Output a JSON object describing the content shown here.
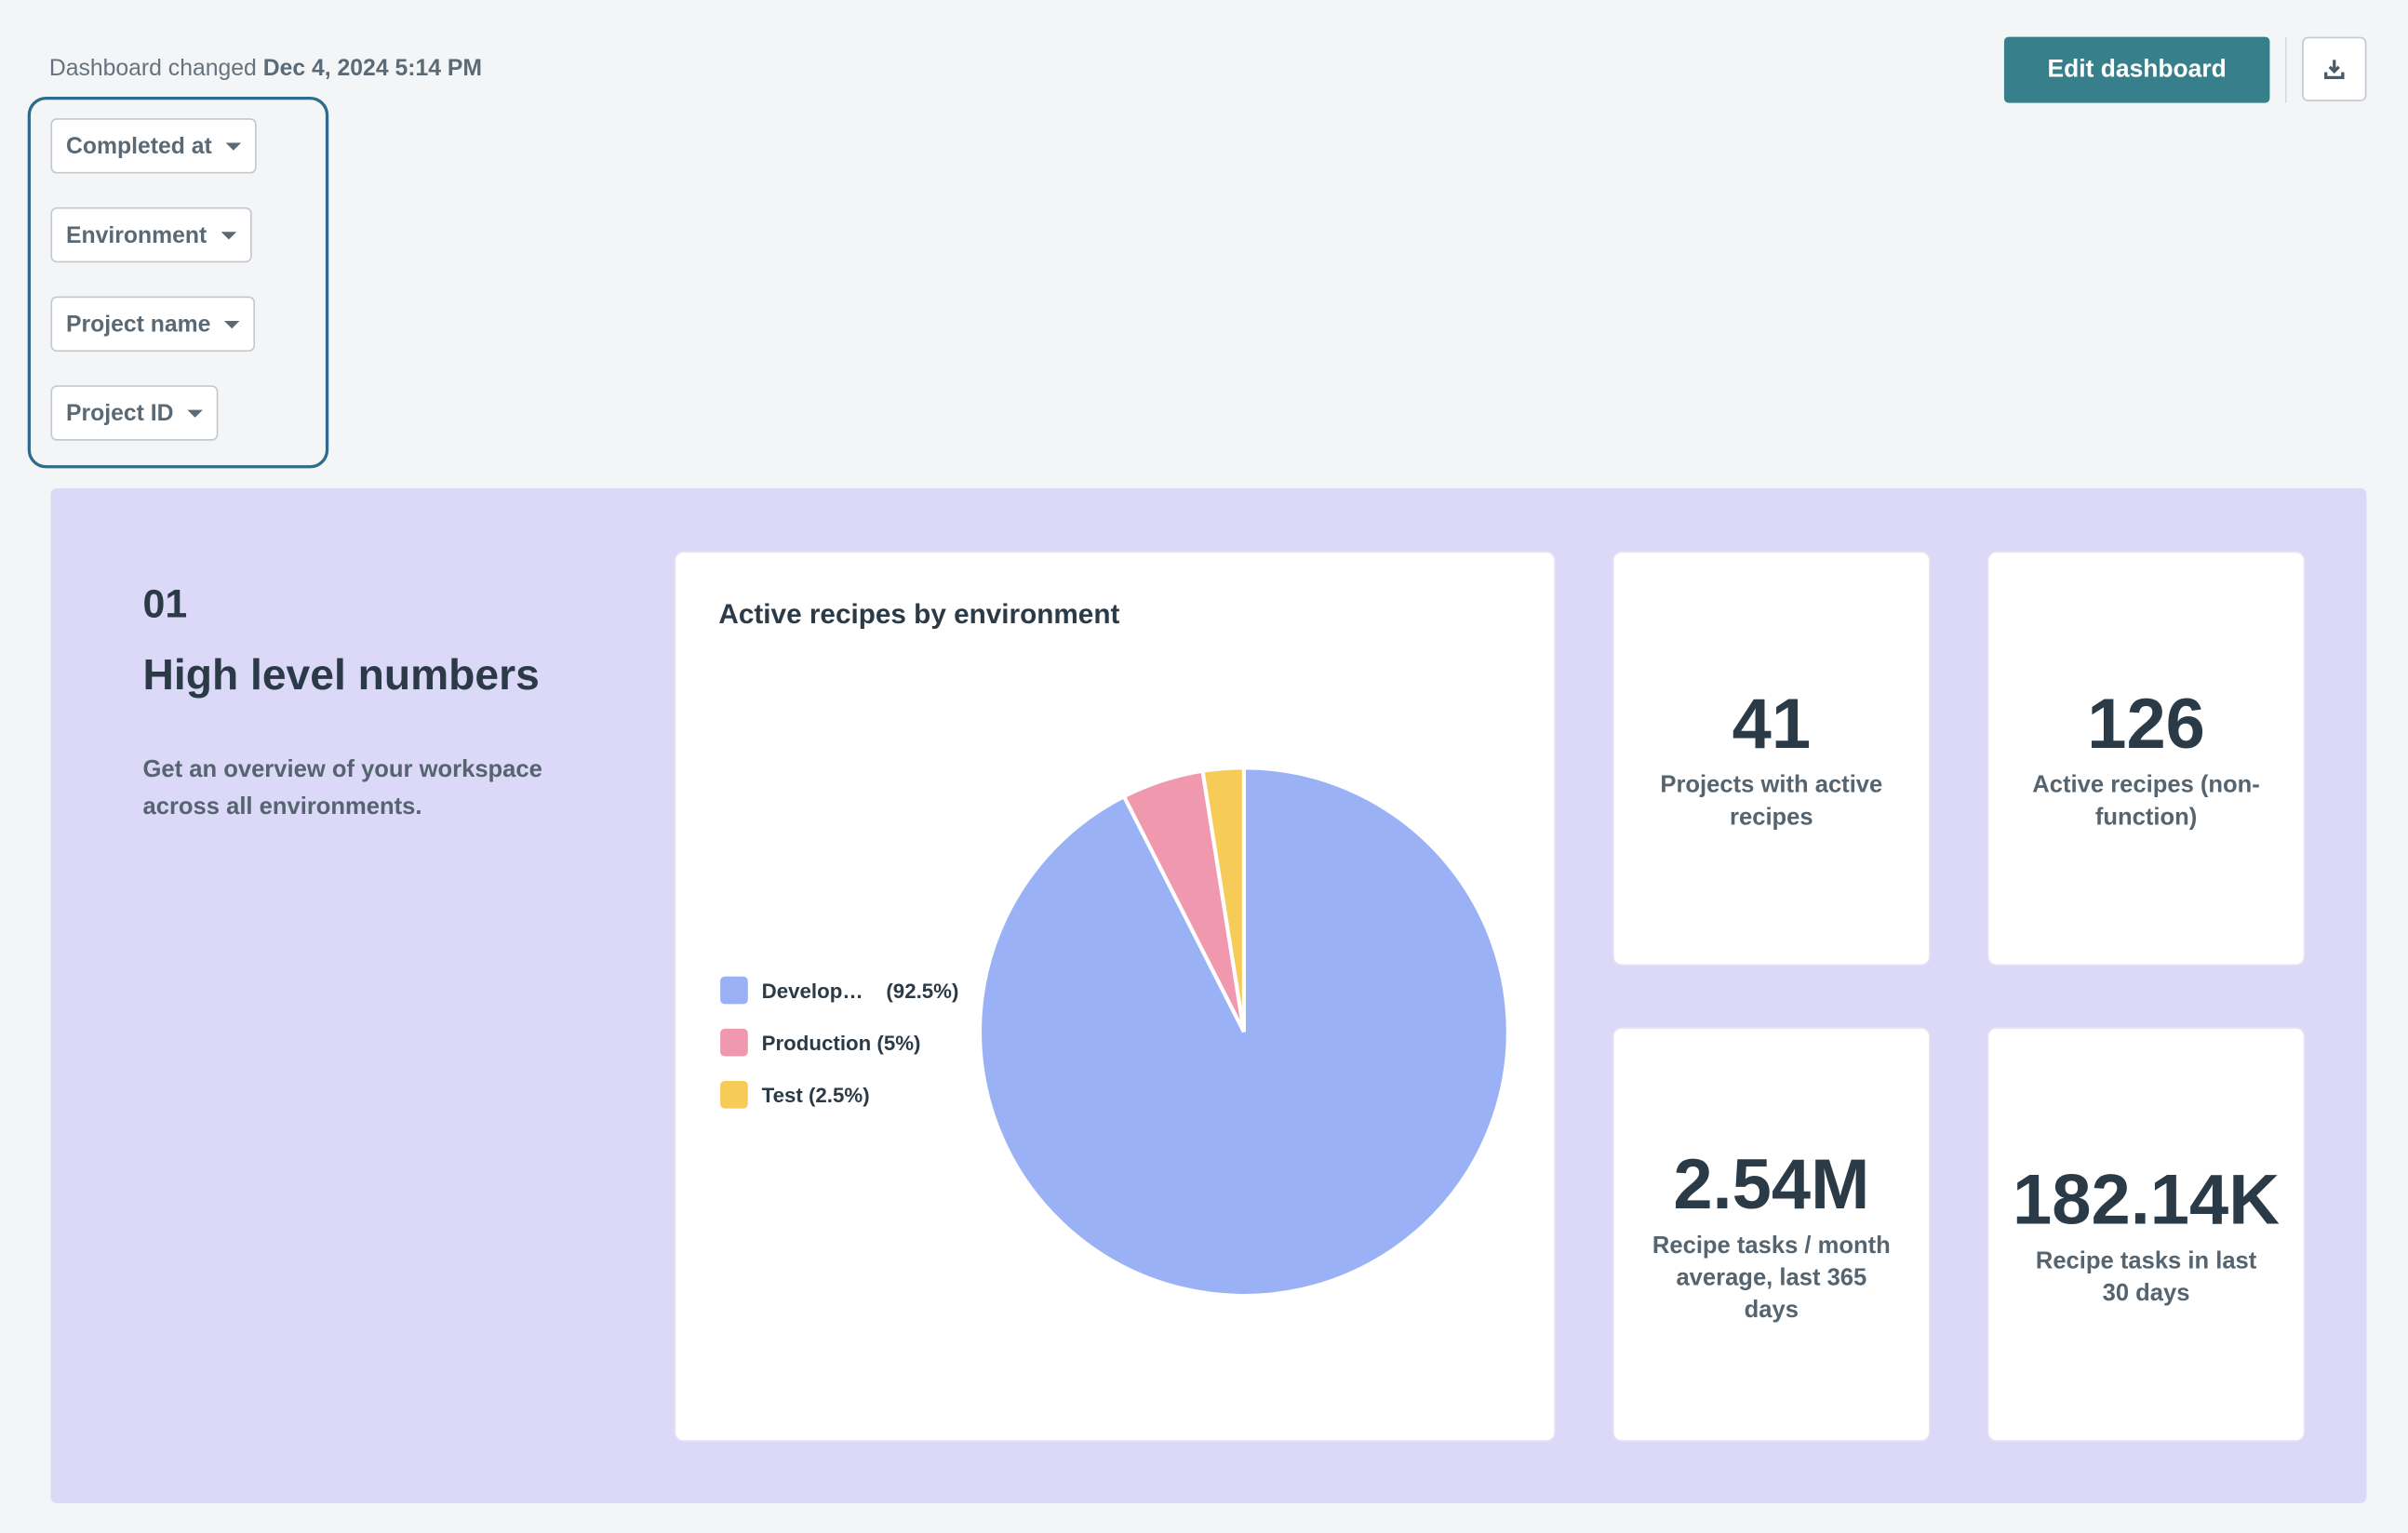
{
  "header": {
    "changed_label": "Dashboard changed",
    "changed_date": "Dec 4, 2024 5:14 PM",
    "edit_button": "Edit dashboard",
    "download_icon": "download-icon"
  },
  "filters": [
    {
      "label": "Completed at"
    },
    {
      "label": "Environment"
    },
    {
      "label": "Project name"
    },
    {
      "label": "Project ID"
    }
  ],
  "section": {
    "number": "01",
    "title": "High level numbers",
    "description": "Get an overview of your workspace across all environments.",
    "background": "#dbd9f7"
  },
  "chart_data": {
    "type": "pie",
    "title": "Active recipes by environment",
    "slices": [
      {
        "name": "Develop…",
        "label_pct": "(92.5%)",
        "value": 92.5,
        "color": "#9ab1f6"
      },
      {
        "name": "Production (5%)",
        "label_pct": "",
        "value": 5,
        "color": "#f098ae"
      },
      {
        "name": "Test (2.5%)",
        "label_pct": "",
        "value": 2.5,
        "color": "#f7cb57"
      }
    ],
    "legend_position": "left"
  },
  "stats": [
    {
      "value": "41",
      "label": "Projects with active recipes"
    },
    {
      "value": "126",
      "label": "Active recipes (non-function)"
    },
    {
      "value": "2.54M",
      "label": "Recipe tasks / month average, last 365 days"
    },
    {
      "value": "182.14K",
      "label": "Recipe tasks in last 30 days"
    }
  ],
  "colors": {
    "accent": "#387f8c",
    "text": "#2b3a47"
  }
}
